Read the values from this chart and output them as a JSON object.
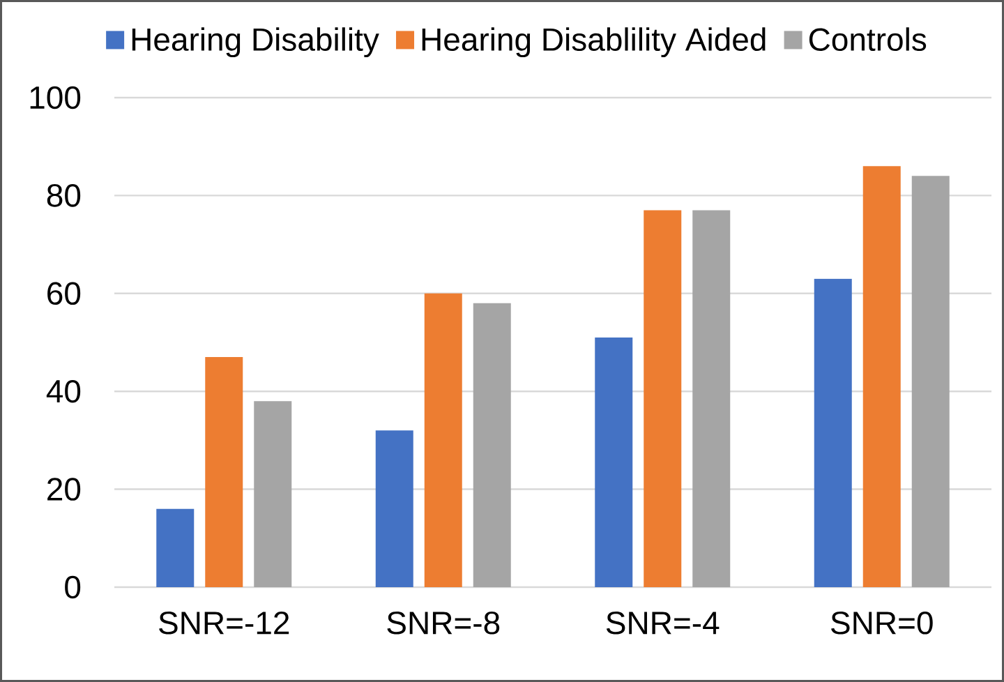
{
  "chart_data": {
    "type": "bar",
    "categories": [
      "SNR=-12",
      "SNR=-8",
      "SNR=-4",
      "SNR=0"
    ],
    "series": [
      {
        "name": "Hearing Disability",
        "color": "#4472c4",
        "values": [
          16,
          32,
          51,
          63
        ]
      },
      {
        "name": "Hearing Disablility Aided",
        "color": "#ed7d31",
        "values": [
          47,
          60,
          77,
          86
        ]
      },
      {
        "name": "Controls",
        "color": "#a5a5a5",
        "values": [
          38,
          58,
          77,
          84
        ]
      }
    ],
    "ylim": [
      0,
      100
    ],
    "yticks": [
      0,
      20,
      40,
      60,
      80,
      100
    ],
    "grid": "y",
    "legend": "top"
  }
}
